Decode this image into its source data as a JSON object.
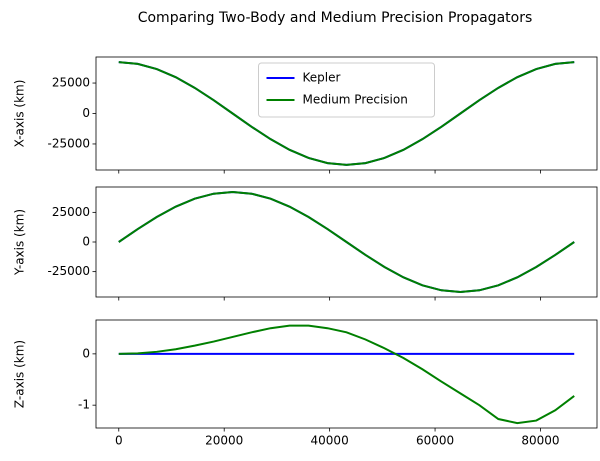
{
  "title": "Comparing Two-Body and Medium Precision Propagators",
  "chart_data": [
    {
      "type": "line",
      "ylabel": "X-axis (km)",
      "legend": "upper center",
      "x": [
        0,
        3600,
        7200,
        10800,
        14400,
        18000,
        21600,
        25200,
        28800,
        32400,
        36000,
        39600,
        43200,
        46800,
        50400,
        54000,
        57600,
        61200,
        64800,
        68400,
        72000,
        75600,
        79200,
        82800,
        86400
      ],
      "xlim": [
        -4320,
        90720
      ],
      "ylim": [
        -46380,
        46380
      ],
      "yticks": [
        -25000,
        0,
        25000
      ],
      "series": [
        {
          "name": "Kepler",
          "color": "#0000ff",
          "values": [
            42164,
            40727,
            36515,
            29814,
            21082,
            10913,
            0,
            -10913,
            -21082,
            -29814,
            -36515,
            -40727,
            -42164,
            -40727,
            -36515,
            -29814,
            -21082,
            -10913,
            0,
            10913,
            21082,
            29814,
            36515,
            40727,
            42164
          ]
        },
        {
          "name": "Medium Precision",
          "color": "#008000",
          "values": [
            42164,
            40727,
            36515,
            29814,
            21082,
            10913,
            0,
            -10913,
            -21082,
            -29814,
            -36515,
            -40727,
            -42164,
            -40727,
            -36515,
            -29814,
            -21082,
            -10913,
            0,
            10913,
            21082,
            29814,
            36515,
            40727,
            42164
          ]
        }
      ]
    },
    {
      "type": "line",
      "ylabel": "Y-axis (km)",
      "x": [
        0,
        3600,
        7200,
        10800,
        14400,
        18000,
        21600,
        25200,
        28800,
        32400,
        36000,
        39600,
        43200,
        46800,
        50400,
        54000,
        57600,
        61200,
        64800,
        68400,
        72000,
        75600,
        79200,
        82800,
        86400
      ],
      "xlim": [
        -4320,
        90720
      ],
      "ylim": [
        -46380,
        46380
      ],
      "yticks": [
        -25000,
        0,
        25000
      ],
      "series": [
        {
          "name": "Kepler",
          "color": "#0000ff",
          "values": [
            0,
            10913,
            21082,
            29814,
            36515,
            40727,
            42164,
            40727,
            36515,
            29814,
            21082,
            10913,
            0,
            -10913,
            -21082,
            -29814,
            -36515,
            -40727,
            -42164,
            -40727,
            -36515,
            -29814,
            -21082,
            -10913,
            0
          ]
        },
        {
          "name": "Medium Precision",
          "color": "#008000",
          "values": [
            0,
            10913,
            21082,
            29814,
            36515,
            40727,
            42164,
            40727,
            36515,
            29814,
            21082,
            10913,
            0,
            -10913,
            -21082,
            -29814,
            -36515,
            -40727,
            -42164,
            -40727,
            -36515,
            -29814,
            -21082,
            -10913,
            0
          ]
        }
      ]
    },
    {
      "type": "line",
      "ylabel": "Z-axis (km)",
      "x": [
        0,
        3600,
        7200,
        10800,
        14400,
        18000,
        21600,
        25200,
        28800,
        32400,
        36000,
        39600,
        43200,
        46800,
        50400,
        54000,
        57600,
        61200,
        64800,
        68400,
        72000,
        75600,
        79200,
        82800,
        86400
      ],
      "xlim": [
        -4320,
        90720
      ],
      "xticks": [
        0,
        20000,
        40000,
        60000,
        80000
      ],
      "ylim": [
        -1.445,
        0.66
      ],
      "yticks": [
        -1,
        0
      ],
      "series": [
        {
          "name": "Kepler",
          "color": "#0000ff",
          "values": [
            0,
            0,
            0,
            0,
            0,
            0,
            0,
            0,
            0,
            0,
            0,
            0,
            0,
            0,
            0,
            0,
            0,
            0,
            0,
            0,
            0,
            0,
            0,
            0,
            0
          ]
        },
        {
          "name": "Medium Precision",
          "color": "#008000",
          "values": [
            0,
            0.01,
            0.04,
            0.09,
            0.16,
            0.24,
            0.33,
            0.42,
            0.5,
            0.55,
            0.55,
            0.5,
            0.42,
            0.28,
            0.11,
            -0.08,
            -0.3,
            -0.54,
            -0.77,
            -1.0,
            -1.27,
            -1.35,
            -1.3,
            -1.1,
            -0.82
          ]
        }
      ]
    }
  ]
}
